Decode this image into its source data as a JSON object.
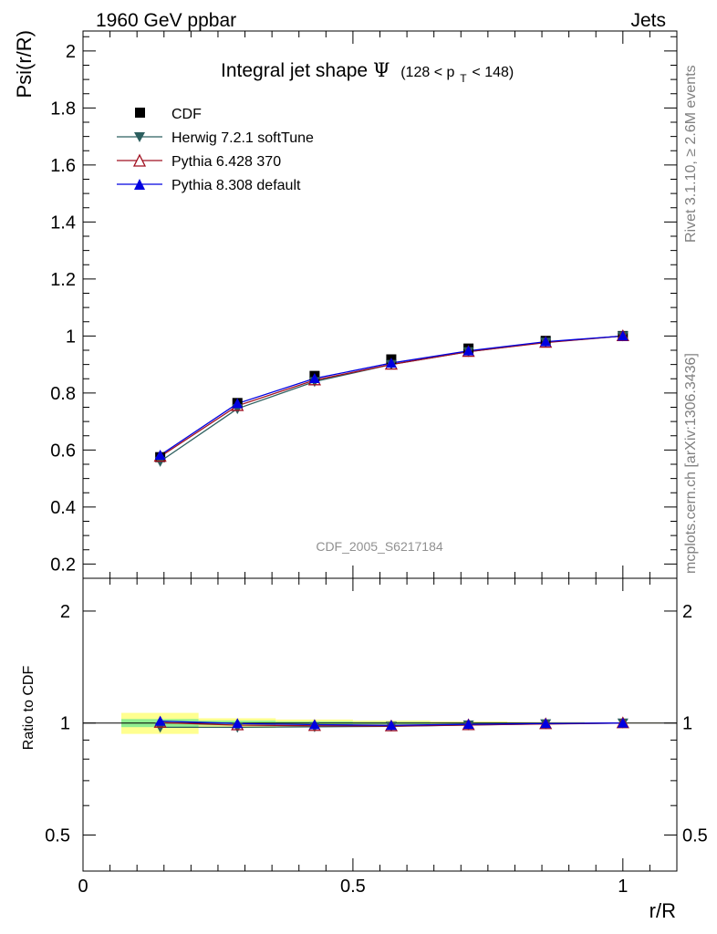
{
  "header": {
    "left": "1960 GeV ppbar",
    "right": "Jets"
  },
  "side": {
    "rivet": "Rivet 3.1.10, ≥ 2.6M events",
    "mcplots": "mcplots.cern.ch [arXiv:1306.3436]"
  },
  "title": {
    "main": "Integral jet shape",
    "psi": "Ψ",
    "cut_pre": "(128 < p",
    "cut_sub": "T",
    "cut_post": " < 148)"
  },
  "watermark": "CDF_2005_S6217184",
  "colors": {
    "cdf": "#000000",
    "herwig": "#2c5f5f",
    "pythia6": "#a01020",
    "pythia8": "#0000e0",
    "band_inner": "#90ee90",
    "band_outer": "#ffff90"
  },
  "chart_data": [
    {
      "type": "line",
      "panel": "main",
      "xlabel": "r/R",
      "ylabel": "Psi(r/R)",
      "xlim": [
        0,
        1.1
      ],
      "ylim": [
        0.15,
        2.07
      ],
      "yticks": [
        0.2,
        0.4,
        0.6,
        0.8,
        1,
        1.2,
        1.4,
        1.6,
        1.8,
        2
      ],
      "ytick_labels": [
        "0.2",
        "0.4",
        "0.6",
        "0.8",
        "1",
        "1.2",
        "1.4",
        "1.6",
        "1.8",
        "2"
      ],
      "legend_position": "top-left",
      "x": [
        0.143,
        0.286,
        0.429,
        0.571,
        0.714,
        0.857,
        1.0
      ],
      "series": [
        {
          "name": "CDF",
          "marker": "square",
          "values": [
            0.575,
            0.765,
            0.86,
            0.918,
            0.956,
            0.983,
            1.0
          ]
        },
        {
          "name": "Herwig 7.2.1 softTune",
          "marker": "triangle-down",
          "values": [
            0.56,
            0.745,
            0.84,
            0.9,
            0.945,
            0.978,
            1.0
          ]
        },
        {
          "name": "Pythia 6.428 370",
          "marker": "triangle-up-open",
          "values": [
            0.577,
            0.755,
            0.845,
            0.9,
            0.945,
            0.977,
            1.0
          ]
        },
        {
          "name": "Pythia 8.308 default",
          "marker": "triangle-up",
          "values": [
            0.582,
            0.763,
            0.851,
            0.905,
            0.948,
            0.98,
            1.0
          ]
        }
      ]
    },
    {
      "type": "line",
      "panel": "ratio",
      "xlabel": "r/R",
      "ylabel": "Ratio to CDF",
      "xlim": [
        0,
        1.1
      ],
      "ylim": [
        0.4,
        2.45
      ],
      "y_scale": "log",
      "xticks": [
        0,
        0.5,
        1
      ],
      "xtick_labels": [
        "0",
        "0.5",
        "1"
      ],
      "yticks": [
        0.5,
        1,
        2
      ],
      "ytick_labels": [
        "0.5",
        "1",
        "2"
      ],
      "x": [
        0.143,
        0.286,
        0.429,
        0.571,
        0.714,
        0.857,
        1.0
      ],
      "bin_edges": [
        0.071,
        0.214,
        0.357,
        0.5,
        0.643,
        0.786,
        0.929,
        1.071
      ],
      "band_inner": [
        [
          0.975,
          1.025
        ],
        [
          0.985,
          1.015
        ],
        [
          0.99,
          1.01
        ],
        [
          0.993,
          1.007
        ],
        [
          0.995,
          1.005
        ],
        [
          0.997,
          1.003
        ],
        [
          0.999,
          1.001
        ]
      ],
      "band_outer": [
        [
          0.935,
          1.065
        ],
        [
          0.97,
          1.03
        ],
        [
          0.978,
          1.022
        ],
        [
          0.985,
          1.015
        ],
        [
          0.99,
          1.01
        ],
        [
          0.994,
          1.006
        ],
        [
          0.998,
          1.002
        ]
      ],
      "series": [
        {
          "name": "Herwig 7.2.1 softTune",
          "values": [
            0.974,
            0.974,
            0.977,
            0.98,
            0.988,
            0.995,
            1.0
          ]
        },
        {
          "name": "Pythia 6.428 370",
          "values": [
            1.003,
            0.987,
            0.983,
            0.981,
            0.988,
            0.994,
            1.0
          ]
        },
        {
          "name": "Pythia 8.308 default",
          "values": [
            1.012,
            0.997,
            0.99,
            0.986,
            0.992,
            0.997,
            1.0
          ]
        }
      ]
    }
  ]
}
